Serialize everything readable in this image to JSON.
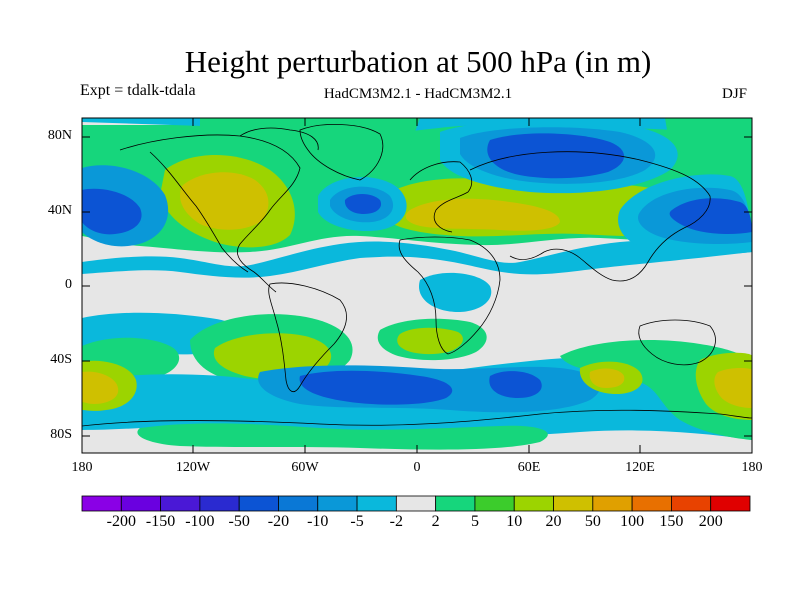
{
  "title": "Height perturbation at 500 hPa (in m)",
  "expt_label": "Expt = tdalk-tdala",
  "model_label": "HadCM3M2.1 - HadCM3M2.1",
  "season": "DJF",
  "lat_labels": [
    "80N",
    "40N",
    "0",
    "40S",
    "80S"
  ],
  "lon_labels": [
    "180",
    "120W",
    "60W",
    "0",
    "60E",
    "120E",
    "180"
  ],
  "colorbar": {
    "colors": [
      "#8a00e6",
      "#6a00e0",
      "#4a18d6",
      "#2a2ad0",
      "#0c54d4",
      "#0a78d6",
      "#0a98d8",
      "#0ab8dc",
      "#e6e6e6",
      "#16d67c",
      "#3ccc2c",
      "#9cd400",
      "#cfc000",
      "#e0a000",
      "#e87000",
      "#e84200",
      "#e00000"
    ],
    "labels": [
      "-200",
      "-150",
      "-100",
      "-50",
      "-20",
      "-10",
      "-5",
      "-2",
      "2",
      "5",
      "10",
      "20",
      "50",
      "100",
      "150",
      "200"
    ]
  },
  "palette": {
    "neutral": "#e6e6e6",
    "blue_light": "#0ab8dc",
    "blue_mid": "#0a98d8",
    "blue_dark": "#0c54d4",
    "blue_deep": "#2a2ad0",
    "green": "#16d67c",
    "green2": "#3ccc2c",
    "yellowgreen": "#9cd400",
    "yellow": "#cfc000",
    "coast": "#000000"
  }
}
